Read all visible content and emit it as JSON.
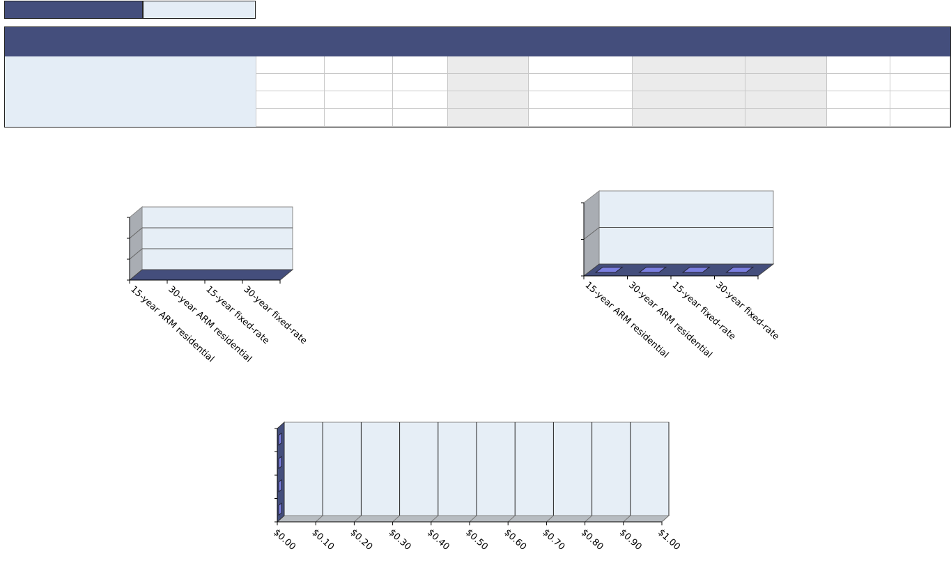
{
  "header": {
    "top_left_cell": "",
    "top_right_cell": "",
    "banner_title": ""
  },
  "table": {
    "label_cell": "",
    "rows": 4,
    "columns": 9,
    "shaded_columns": [
      3,
      5,
      6
    ]
  },
  "colors": {
    "header_navy": "#444e7c",
    "pale_blue": "#e4edf6",
    "shaded_cell": "#ebebeb",
    "bar_blue": "#7b7fe0"
  },
  "chart_data": [
    {
      "type": "bar",
      "orientation": "vertical",
      "3d": true,
      "categories": [
        "15-year ARM residential",
        "30-year ARM residential",
        "15-year fixed-rate",
        "30-year fixed-rate"
      ],
      "series": [
        {
          "values": [
            0,
            0,
            0,
            0
          ]
        }
      ],
      "gridlines": 3,
      "grid": true
    },
    {
      "type": "bar",
      "orientation": "vertical",
      "3d": true,
      "categories": [
        "15-year ARM residential",
        "30-year ARM residential",
        "15-year fixed-rate",
        "30-year fixed-rate"
      ],
      "series": [
        {
          "values": [
            0,
            0,
            0,
            0
          ]
        }
      ],
      "gridlines": 2,
      "grid": true
    },
    {
      "type": "bar",
      "orientation": "horizontal",
      "3d": true,
      "categories": [
        "",
        "",
        "",
        ""
      ],
      "series": [
        {
          "values": [
            0,
            0,
            0,
            0
          ]
        }
      ],
      "value_ticks": [
        "$0.00",
        "$0.10",
        "$0.20",
        "$0.30",
        "$0.40",
        "$0.50",
        "$0.60",
        "$0.70",
        "$0.80",
        "$0.90",
        "$1.00"
      ],
      "xlim": [
        0,
        1
      ],
      "grid": true
    }
  ]
}
